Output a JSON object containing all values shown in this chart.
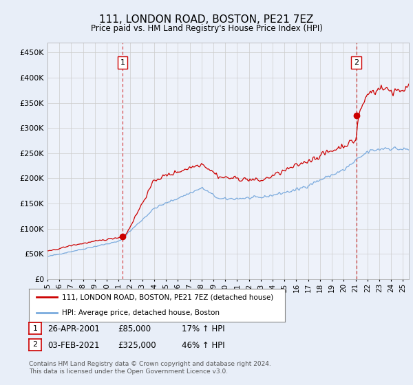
{
  "title": "111, LONDON ROAD, BOSTON, PE21 7EZ",
  "subtitle": "Price paid vs. HM Land Registry's House Price Index (HPI)",
  "ylabel_ticks": [
    "£0",
    "£50K",
    "£100K",
    "£150K",
    "£200K",
    "£250K",
    "£300K",
    "£350K",
    "£400K",
    "£450K"
  ],
  "ytick_vals": [
    0,
    50000,
    100000,
    150000,
    200000,
    250000,
    300000,
    350000,
    400000,
    450000
  ],
  "ylim": [
    0,
    470000
  ],
  "xlim_start": 1995.0,
  "xlim_end": 2025.5,
  "hpi_color": "#7aaadd",
  "price_color": "#cc0000",
  "sale1_x_year": 2001.33,
  "sale1_y": 85000,
  "sale2_x_year": 2021.08,
  "sale2_y": 325000,
  "sale1_date": "26-APR-2001",
  "sale1_price": 85000,
  "sale1_hpi_pct": "17%",
  "sale2_date": "03-FEB-2021",
  "sale2_price": 325000,
  "sale2_hpi_pct": "46%",
  "legend_label1": "111, LONDON ROAD, BOSTON, PE21 7EZ (detached house)",
  "legend_label2": "HPI: Average price, detached house, Boston",
  "footer": "Contains HM Land Registry data © Crown copyright and database right 2024.\nThis data is licensed under the Open Government Licence v3.0.",
  "bg_color": "#e8eef8",
  "plot_bg_color": "#eef2fa"
}
